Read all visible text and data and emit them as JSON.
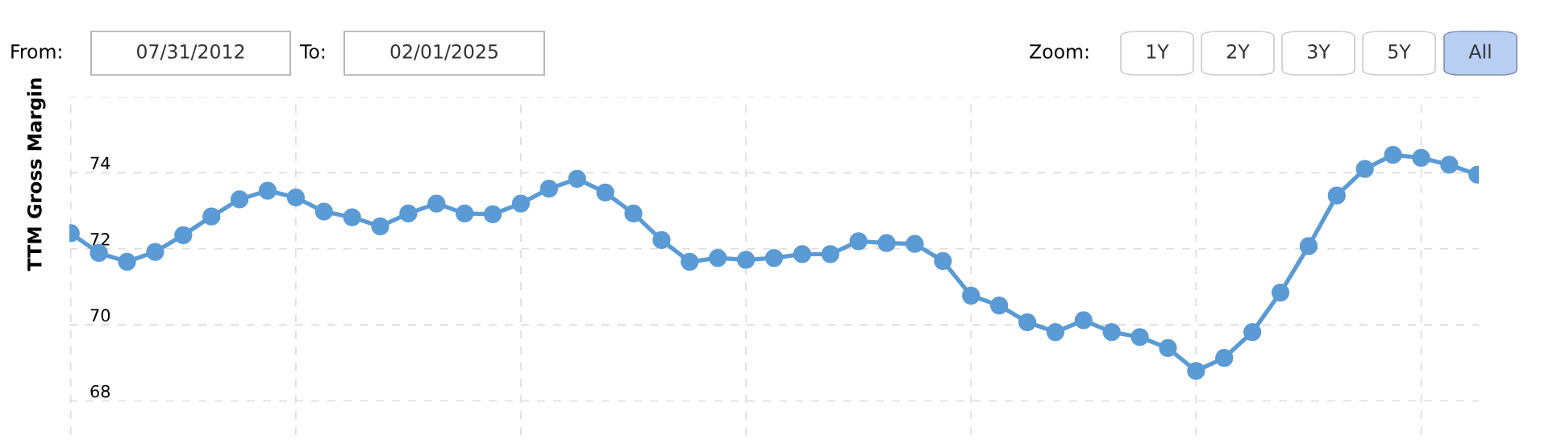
{
  "chart_data": {
    "type": "line",
    "ylabel": "TTM Gross Margin",
    "categories": [
      null,
      null,
      null,
      null,
      null,
      null,
      null,
      null,
      null,
      null,
      null,
      null,
      null,
      null,
      null,
      null,
      null,
      null,
      null,
      null,
      null,
      null,
      null,
      null,
      null,
      null,
      null,
      null,
      null,
      null,
      null,
      null,
      null,
      null,
      null,
      null,
      null,
      null,
      null,
      null,
      null,
      null,
      null,
      null,
      null,
      null,
      null,
      null,
      null,
      null,
      null
    ],
    "series": [
      {
        "color": "#5b9bd5",
        "values": [
          72.41,
          71.89,
          71.66,
          71.92,
          72.36,
          72.85,
          73.3,
          73.53,
          73.35,
          72.98,
          72.83,
          72.59,
          72.93,
          73.19,
          72.93,
          72.91,
          73.19,
          73.58,
          73.84,
          73.48,
          72.93,
          72.23,
          71.66,
          71.76,
          71.71,
          71.76,
          71.86,
          71.86,
          72.2,
          72.15,
          72.13,
          71.68,
          70.77,
          70.51,
          70.07,
          69.81,
          70.12,
          69.81,
          69.68,
          69.39,
          68.79,
          69.13,
          69.81,
          70.85,
          72.07,
          73.4,
          74.1,
          74.47,
          74.39,
          74.21,
          73.95
        ]
      }
    ],
    "ylim": [
      67.1,
      76
    ],
    "yticks": [
      68,
      70,
      72,
      74,
      {
        "value": 76,
        "label": null
      }
    ],
    "grid": true,
    "marker": "circle",
    "line_style": "solid",
    "legend": false,
    "tick_labels": "y",
    "annotations": [
      "From:",
      "07/31/2012",
      "To:",
      "02/01/2025",
      "Zoom:",
      "1Y",
      "2Y",
      "3Y",
      "5Y",
      "All"
    ]
  }
}
